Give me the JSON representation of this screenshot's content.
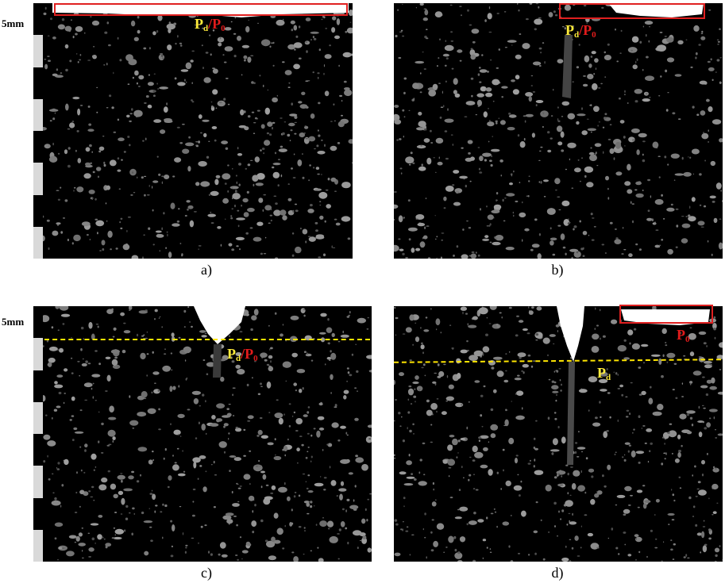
{
  "scale": {
    "label_top": "5mm",
    "label_bottom": "5mm"
  },
  "panels": [
    {
      "id": "a",
      "caption": "a)",
      "label": {
        "p_d": "P",
        "d_sub": "d",
        "slash": "/",
        "p_0": "P",
        "zero_sub": "0"
      }
    },
    {
      "id": "b",
      "caption": "b)",
      "label": {
        "p_d": "P",
        "d_sub": "d",
        "slash": "/",
        "p_0": "P",
        "zero_sub": "0"
      }
    },
    {
      "id": "c",
      "caption": "c)",
      "label": {
        "p_d": "P",
        "d_sub": "d",
        "slash": "/",
        "p_0": "P",
        "zero_sub": "0"
      }
    },
    {
      "id": "d",
      "caption": "d)",
      "label_p0": {
        "p": "P",
        "sub": "0"
      },
      "label_pd": {
        "p": "P",
        "sub": "d"
      }
    }
  ],
  "colors": {
    "highlight_box": "#e02020",
    "dashed_line": "#ffe600",
    "label_yellow": "#ffeb3b",
    "label_red": "#e21b1b"
  }
}
